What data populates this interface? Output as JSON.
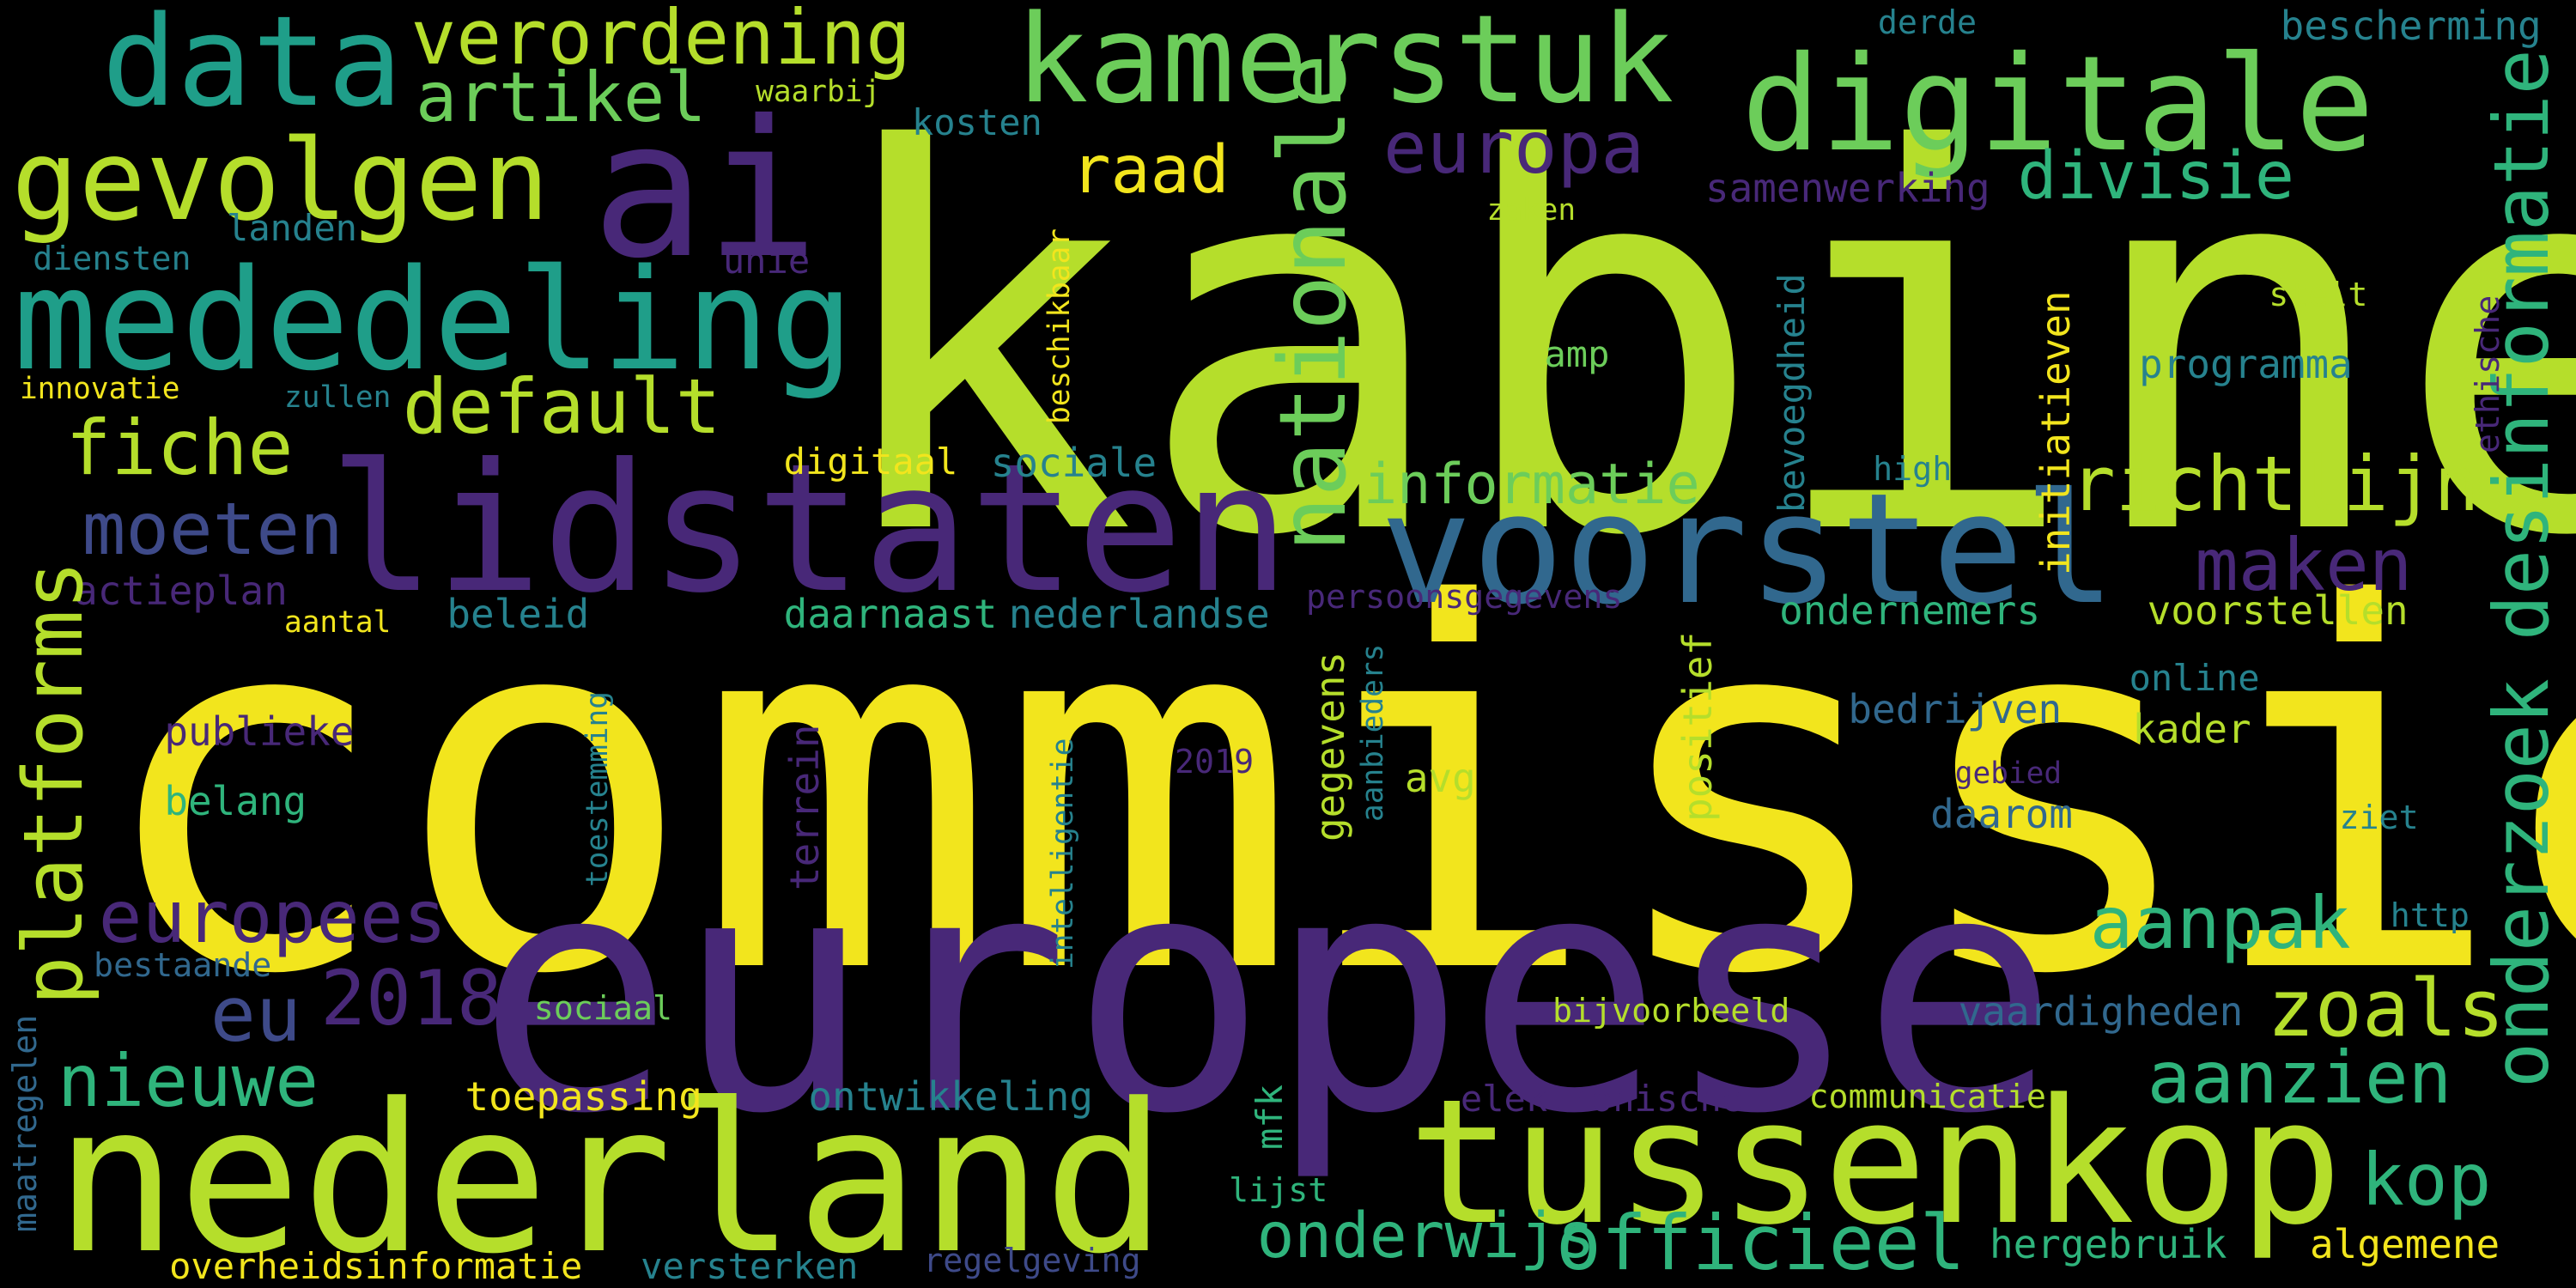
{
  "colors": {
    "background": "#000000",
    "yellow": "#f2e51d",
    "lime": "#b5de2b",
    "green": "#6ccd5a",
    "teal": "#2fb47c",
    "teal_dark": "#1f9e89",
    "cyan": "#26828e",
    "blue": "#31688e",
    "indigo": "#3e4a89",
    "purple": "#482878",
    "violet": "#440154"
  },
  "words": {
    "commissie": "commissie",
    "kabinet": "kabinet",
    "europese": "europese",
    "lidstaten": "lidstaten",
    "voorstel": "voorstel",
    "nederland": "nederland",
    "tussenkop": "tussenkop",
    "ai": "ai",
    "mededeling": "mededeling",
    "digitale": "digitale",
    "kamerstuk": "kamerstuk",
    "data": "data",
    "gevolgen": "gevolgen",
    "verordening": "verordening",
    "artikel": "artikel",
    "waarbij": "waarbij",
    "kosten": "kosten",
    "derde": "derde",
    "bescherming": "bescherming",
    "europa": "europa",
    "raad": "raad",
    "divisie": "divisie",
    "samenwerking": "samenwerking",
    "zaken": "zaken",
    "landen": "landen",
    "diensten": "diensten",
    "unie": "unie",
    "default": "default",
    "fiche": "fiche",
    "innovatie": "innovatie",
    "zullen": "zullen",
    "richtlijn": "richtlijn",
    "informatie": "informatie",
    "moeten": "moeten",
    "maken": "maken",
    "actieplan": "actieplan",
    "aantal": "aantal",
    "beleid": "beleid",
    "daarnaast": "daarnaast",
    "nederlandse": "nederlandse",
    "persoonsgegevens": "persoonsgegevens",
    "ondernemers": "ondernemers",
    "voorstellen": "voorstellen",
    "publieke": "publieke",
    "belang": "belang",
    "bedrijven": "bedrijven",
    "kader": "kader",
    "online": "online",
    "avg": "avg",
    "daarom": "daarom",
    "ziet": "ziet",
    "europees": "europees",
    "bestaande": "bestaande",
    "eu": "eu",
    "2018": "2018",
    "aanpak": "aanpak",
    "zoals": "zoals",
    "nieuwe": "nieuwe",
    "sociaal": "sociaal",
    "bijvoorbeeld": "bijvoorbeeld",
    "vaardigheden": "vaardigheden",
    "aanzien": "aanzien",
    "toepassing": "toepassing",
    "ontwikkeling": "ontwikkeling",
    "elektronische": "elektronische",
    "communicatie": "communicatie",
    "kop": "kop",
    "onderwijs": "onderwijs",
    "officieel": "officieel",
    "hergebruik": "hergebruik",
    "algemene": "algemene",
    "overheidsinformatie": "overheidsinformatie",
    "versterken": "versterken",
    "regelgeving": "regelgeving",
    "programma": "programma",
    "stelt": "stelt",
    "amp": "amp",
    "digitaal": "digitaal",
    "sociale": "sociale",
    "high": "high",
    "2019": "2019",
    "gebied": "gebied",
    "http": "http",
    "lijst": "lijst",
    "nationale": "nationale",
    "platforms": "platforms",
    "onderzoek": "onderzoek",
    "desinformatie": "desinformatie",
    "ethische": "ethische",
    "initiatieven": "initiatieven",
    "bevoegdheid": "bevoegdheid",
    "beschikbaar": "beschikbaar",
    "positief": "positief",
    "gegevens": "gegevens",
    "aanbieders": "aanbieders",
    "intelligentie": "intelligentie",
    "terrein": "terrein",
    "toestemming": "toestemming",
    "mfk": "mfk",
    "maatregelen": "maatregelen"
  }
}
